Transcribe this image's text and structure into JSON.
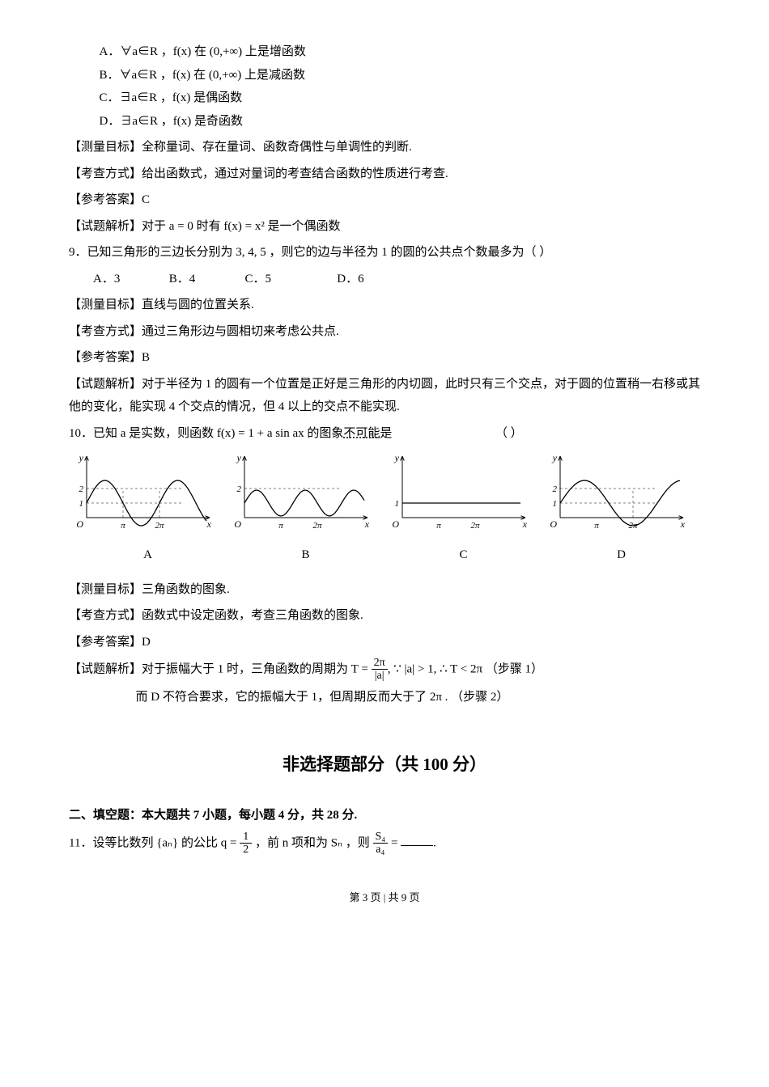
{
  "q8": {
    "optA": "A．∀a∈R ，f(x) 在 (0,+∞) 上是增函数",
    "optB": "B．∀a∈R ，f(x) 在 (0,+∞) 上是减函数",
    "optC": "C．∃a∈R ，f(x) 是偶函数",
    "optD": "D．∃a∈R ，f(x) 是奇函数",
    "measure": "【测量目标】全称量词、存在量词、函数奇偶性与单调性的判断.",
    "method": "【考查方式】给出函数式，通过对量词的考查结合函数的性质进行考查.",
    "answer": "【参考答案】C",
    "solution": "【试题解析】对于 a = 0 时有 f(x) = x² 是一个偶函数"
  },
  "q9": {
    "stem": "9．已知三角形的三边长分别为 3, 4, 5 ，则它的边与半径为 1 的圆的公共点个数最多为（    ）",
    "optA": "A．3",
    "optB": "B．4",
    "optC": "C．5",
    "optD": "D．6",
    "measure": "【测量目标】直线与圆的位置关系.",
    "method": "【考查方式】通过三角形边与圆相切来考虑公共点.",
    "answer": "【参考答案】B",
    "solution": "【试题解析】对于半径为 1 的圆有一个位置是正好是三角形的内切圆，此时只有三个交点，对于圆的位置稍一右移或其他的变化，能实现 4 个交点的情况，但 4 以上的交点不能实现."
  },
  "q10": {
    "stem_a": "10．已知 a 是实数，则函数 f(x) = 1 + a sin ax 的图象",
    "stem_b": "不可能",
    "stem_c": "是",
    "stem_paren": "（   ）",
    "labels": {
      "A": "A",
      "B": "B",
      "C": "C",
      "D": "D"
    },
    "measure": "【测量目标】三角函数的图象.",
    "method": "【考查方式】函数式中设定函数，考查三角函数的图象.",
    "answer": "【参考答案】D",
    "solution1_a": "【试题解析】对于振幅大于 1 时，三角函数的周期为 T = ",
    "solution1_frac_top": "2π",
    "solution1_frac_bot": "|a|",
    "solution1_b": ", ∵ |a| > 1, ∴ T < 2π  （步骤 1）",
    "solution2": "而 D 不符合要求，它的振幅大于 1，但周期反而大于了 2π .  （步骤 2）",
    "chart": {
      "width": 180,
      "height": 110,
      "axis_color": "#000000",
      "curve_color": "#000000",
      "dash_color": "#808080",
      "ylabels": [
        "1",
        "2"
      ],
      "xlabels": [
        "π",
        "2π"
      ],
      "origin": "O",
      "ylabel": "y",
      "xlabel": "x",
      "panels": [
        {
          "amp": 28,
          "period": 90,
          "dash_y": [
            1,
            2
          ],
          "dash_x": [
            1,
            1
          ]
        },
        {
          "amp": 16,
          "period": 60,
          "dash_y": [
            2
          ],
          "dash_x": [
            0,
            0
          ]
        },
        {
          "amp": 0,
          "period": 0,
          "dash_y": [
            1
          ],
          "dash_x": [
            0,
            0
          ]
        },
        {
          "amp": 28,
          "period": 120,
          "dash_y": [
            1,
            2
          ],
          "dash_x": [
            0,
            1
          ]
        }
      ]
    }
  },
  "section2": {
    "title": "非选择题部分（共 100 分）",
    "heading": "二、填空题：本大题共 7 小题，每小题 4 分，共 28 分."
  },
  "q11": {
    "stem_a": "11．设等比数列 {aₙ} 的公比 q = ",
    "frac_top": "1",
    "frac_bot": "2",
    "stem_b": " ，前 n 项和为 Sₙ ，则 ",
    "frac2_top": "S₄",
    "frac2_bot": "a₄",
    "stem_c": " = ",
    "stem_d": "."
  },
  "footer": "第 3 页 | 共 9 页"
}
